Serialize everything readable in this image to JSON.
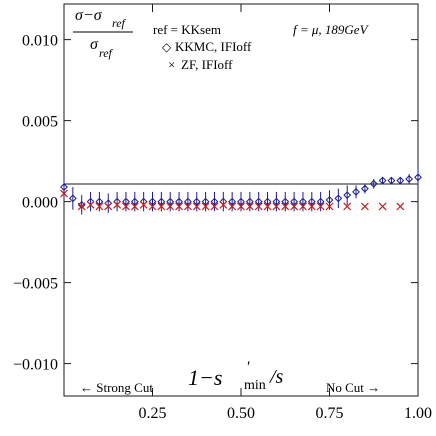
{
  "chart_data": {
    "type": "scatter",
    "xlim": [
      0.0,
      1.0
    ],
    "ylim": [
      -0.012,
      0.0122
    ],
    "x_ticks": [
      0.25,
      0.5,
      0.75,
      1.0
    ],
    "x_tick_labels": [
      "0.25",
      "0.50",
      "0.75",
      "1.00"
    ],
    "y_ticks": [
      0.01,
      0.005,
      0.0,
      -0.005,
      -0.01
    ],
    "y_tick_labels": [
      "0.010",
      "0.005",
      "0.000",
      "−0.005",
      "−0.010"
    ],
    "ylabel": {
      "num_main": "σ−σ",
      "num_sub": "ref",
      "den_main": "σ",
      "den_sub": "ref"
    },
    "xlabel": {
      "lead": "1−s",
      "prime": "′",
      "sub": "min",
      "tail": "/s"
    },
    "legend": {
      "ref_label": "ref = KKsem",
      "setting": "f = μ, 189GeV",
      "entries": [
        {
          "marker": "◇",
          "label": "KKMC, IFIoff",
          "color": "#1a1a8c"
        },
        {
          "marker": "×",
          "label": "ZF, IFIoff",
          "color": "#cc2020"
        }
      ]
    },
    "annotations": {
      "left": "← Strong Cut",
      "right": "No Cut →"
    },
    "reference_line": 0.0,
    "series": [
      {
        "name": "KKMC, IFIoff",
        "marker": "diamond",
        "color": "#1a1a8c",
        "x": [
          0.0,
          0.025,
          0.05,
          0.075,
          0.1,
          0.125,
          0.15,
          0.175,
          0.2,
          0.225,
          0.25,
          0.275,
          0.3,
          0.325,
          0.35,
          0.375,
          0.4,
          0.425,
          0.45,
          0.475,
          0.5,
          0.525,
          0.55,
          0.575,
          0.6,
          0.625,
          0.65,
          0.675,
          0.7,
          0.725,
          0.75,
          0.775,
          0.8,
          0.825,
          0.85,
          0.875,
          0.9,
          0.925,
          0.95,
          0.975,
          1.0
        ],
        "y": [
          0.0009,
          0.0002,
          -0.0002,
          0.0,
          0.0,
          -0.0001,
          0.0,
          0.0,
          0.0,
          0.0,
          0.0,
          0.0,
          0.0,
          0.0,
          0.0,
          0.0,
          0.0,
          0.0,
          0.0,
          0.0,
          0.0,
          0.0,
          0.0,
          0.0,
          0.0,
          0.0,
          0.0,
          0.0,
          0.0,
          0.0,
          0.0001,
          0.0002,
          0.0004,
          0.0006,
          0.0008,
          0.0011,
          0.0013,
          0.0013,
          0.0013,
          0.0014,
          0.0015
        ],
        "err": [
          0.0007,
          0.0007,
          0.0006,
          0.0006,
          0.0006,
          0.0006,
          0.0006,
          0.0006,
          0.0006,
          0.0006,
          0.0006,
          0.0006,
          0.0006,
          0.0006,
          0.0006,
          0.0006,
          0.0006,
          0.0006,
          0.0006,
          0.0006,
          0.0006,
          0.0006,
          0.0006,
          0.0006,
          0.0006,
          0.0006,
          0.0006,
          0.0006,
          0.0006,
          0.0006,
          0.0006,
          0.0006,
          0.0006,
          0.0004,
          0.0003,
          0.0003,
          0.0002,
          0.0002,
          0.0002,
          0.0003,
          0.0006
        ]
      },
      {
        "name": "ZF, IFIoff",
        "marker": "cross",
        "color": "#cc2020",
        "x": [
          0.0,
          0.05,
          0.075,
          0.1,
          0.125,
          0.15,
          0.175,
          0.2,
          0.225,
          0.25,
          0.275,
          0.3,
          0.325,
          0.35,
          0.375,
          0.4,
          0.425,
          0.45,
          0.475,
          0.5,
          0.525,
          0.55,
          0.575,
          0.6,
          0.625,
          0.65,
          0.675,
          0.7,
          0.725,
          0.75,
          0.8,
          0.85,
          0.9,
          0.95
        ],
        "y": [
          0.0005,
          -0.0003,
          -0.0002,
          -0.0003,
          -0.0003,
          -0.0002,
          -0.0003,
          -0.0003,
          -0.0002,
          -0.0003,
          -0.0003,
          -0.0003,
          -0.0003,
          -0.0003,
          -0.0003,
          -0.0003,
          -0.0003,
          -0.0002,
          -0.0003,
          -0.0003,
          -0.0003,
          -0.0003,
          -0.0003,
          -0.0003,
          -0.0003,
          -0.0003,
          -0.0003,
          -0.0003,
          -0.0003,
          -0.0003,
          -0.0003,
          -0.0003,
          -0.0003,
          -0.0003
        ]
      }
    ]
  }
}
